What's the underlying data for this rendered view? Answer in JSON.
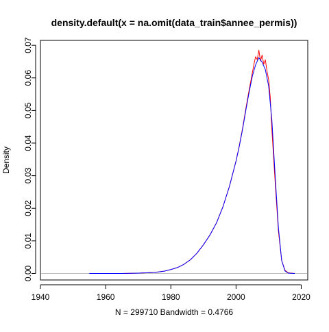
{
  "chart_data": {
    "type": "line",
    "title": "density.default(x = na.omit(data_train$annee_permis))",
    "xlabel": "N = 299710   Bandwidth = 0.4766",
    "ylabel": "Density",
    "xlim": [
      1940,
      2022
    ],
    "ylim": [
      -0.002,
      0.0715
    ],
    "x_ticks": [
      1940,
      1960,
      1980,
      2000,
      2020
    ],
    "x_tick_labels": [
      "1940",
      "1960",
      "1980",
      "2000",
      "2020"
    ],
    "y_ticks": [
      0.0,
      0.01,
      0.02,
      0.03,
      0.04,
      0.05,
      0.06,
      0.07
    ],
    "y_tick_labels": [
      "0.00",
      "0.01",
      "0.02",
      "0.03",
      "0.04",
      "0.05",
      "0.06",
      "0.07"
    ],
    "grid": false,
    "baseline": {
      "y": 0,
      "color": "#bdbdbd"
    },
    "series": [
      {
        "color": "#ff0000",
        "x": [
          1955,
          1965,
          1970,
          1975,
          1978,
          1980,
          1982,
          1984,
          1986,
          1988,
          1990,
          1992,
          1994,
          1996,
          1998,
          2000,
          2001,
          2002,
          2003,
          2004,
          2005,
          2005.5,
          2006,
          2006.5,
          2007,
          2007.5,
          2008,
          2008.5,
          2009,
          2009.5,
          2010,
          2010.5,
          2011,
          2012,
          2013,
          2014,
          2015,
          2016,
          2018
        ],
        "y": [
          0.0,
          0.0,
          0.0001,
          0.0003,
          0.0007,
          0.0012,
          0.0018,
          0.0028,
          0.0042,
          0.0062,
          0.0088,
          0.0118,
          0.0155,
          0.0205,
          0.0268,
          0.0345,
          0.0392,
          0.0445,
          0.0505,
          0.0562,
          0.0615,
          0.0642,
          0.0665,
          0.0656,
          0.0685,
          0.0652,
          0.067,
          0.0642,
          0.0655,
          0.062,
          0.0595,
          0.054,
          0.044,
          0.028,
          0.013,
          0.004,
          0.001,
          0.0002,
          0.0
        ]
      },
      {
        "color": "#0000ff",
        "x": [
          1955,
          1965,
          1970,
          1975,
          1978,
          1980,
          1982,
          1984,
          1986,
          1988,
          1990,
          1992,
          1994,
          1996,
          1998,
          2000,
          2001,
          2002,
          2003,
          2004,
          2005,
          2006,
          2007,
          2008,
          2009,
          2010,
          2011,
          2012,
          2013,
          2014,
          2015,
          2016,
          2018
        ],
        "y": [
          0.0,
          0.0,
          0.0001,
          0.0003,
          0.0007,
          0.0012,
          0.0018,
          0.0028,
          0.0042,
          0.0062,
          0.0088,
          0.0118,
          0.0155,
          0.0205,
          0.0268,
          0.0345,
          0.039,
          0.0442,
          0.05,
          0.0555,
          0.0605,
          0.064,
          0.0662,
          0.0648,
          0.0625,
          0.0575,
          0.047,
          0.03,
          0.014,
          0.004,
          0.0008,
          0.0001,
          0.0
        ]
      }
    ]
  }
}
